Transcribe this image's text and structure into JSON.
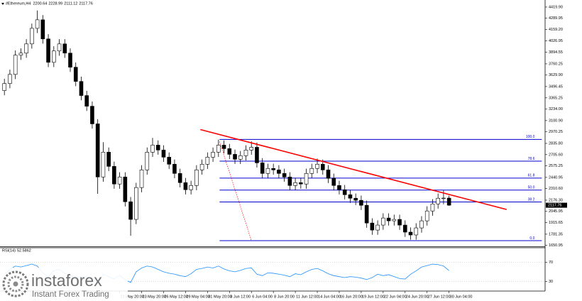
{
  "chart_data": {
    "type": "candlestick",
    "title": "#Ethereum,H4",
    "categories": [
      null,
      null,
      null,
      null,
      null,
      null,
      null,
      null,
      null,
      null,
      null,
      null,
      null,
      null,
      null,
      null,
      null,
      null,
      null,
      null,
      null,
      "21 May 20:00",
      null,
      null,
      null,
      "23 May 20:00",
      null,
      null,
      null,
      "26 May 12:00",
      null,
      null,
      null,
      "29 May 04:00",
      null,
      null,
      null,
      "31 May 20:00",
      null,
      null,
      null,
      "3 Jun 12:00",
      null,
      null,
      null,
      "6 Jun 04:00",
      null,
      null,
      null,
      "8 Jun 20:00",
      null,
      null,
      null,
      "11 Jun 12:00",
      null,
      null,
      null,
      "14 Jun 04:00",
      null,
      null,
      null,
      "16 Jun 20:00",
      null,
      null,
      null,
      "19 Jun 12:00",
      null,
      null,
      null,
      "22 Jun 04:00",
      null,
      null,
      null,
      "24 Jun 20:00",
      null,
      null,
      null,
      "27 Jun 12:00",
      null,
      null,
      null,
      "30 Jun 04:00"
    ],
    "open": [
      3450,
      3532,
      3638,
      3861,
      3885,
      3992,
      4173,
      4272,
      4050,
      3778,
      3910,
      3992,
      3885,
      3721,
      3556,
      3392,
      3268,
      3063,
      2446,
      2734,
      2569,
      2364,
      2446,
      2158,
      1953,
      2323,
      2528,
      2734,
      2816,
      2759,
      2676,
      2594,
      2487,
      2380,
      2298,
      2347,
      2528,
      2594,
      2676,
      2734,
      2816,
      2775,
      2709,
      2652,
      2693,
      2759,
      2791,
      2610,
      2487,
      2545,
      2528,
      2487,
      2446,
      2347,
      2380,
      2364,
      2487,
      2545,
      2594,
      2528,
      2430,
      2347,
      2298,
      2240,
      2199,
      2175,
      2117,
      1911,
      1829,
      1887,
      1969,
      1936,
      1953,
      1887,
      1805,
      1772,
      1854,
      1936,
      2051,
      2133,
      2199,
      2200.64
    ],
    "high": [
      3587,
      3693,
      3916,
      3940,
      4047,
      4228,
      4380,
      4327,
      4105,
      3965,
      4047,
      4047,
      3940,
      3776,
      3611,
      3447,
      3323,
      3118,
      2850,
      2789,
      2624,
      2501,
      2501,
      2213,
      2378,
      2583,
      2789,
      2900,
      2871,
      2814,
      2731,
      2649,
      2542,
      2435,
      2402,
      2583,
      2649,
      2731,
      2789,
      2880,
      2871,
      2830,
      2764,
      2748,
      2814,
      2860,
      2846,
      2665,
      2600,
      2600,
      2583,
      2542,
      2501,
      2435,
      2435,
      2542,
      2600,
      2660,
      2649,
      2583,
      2485,
      2402,
      2353,
      2295,
      2254,
      2230,
      2172,
      1966,
      1942,
      2024,
      2024,
      2008,
      2008,
      1942,
      1860,
      1909,
      1991,
      2106,
      2188,
      2254,
      2290,
      2228.99
    ],
    "low": [
      3395,
      3477,
      3583,
      3806,
      3830,
      3937,
      4118,
      3995,
      3723,
      3723,
      3855,
      3830,
      3666,
      3501,
      3337,
      3213,
      3008,
      2250,
      2391,
      2514,
      2309,
      2309,
      2103,
      1763,
      1898,
      2268,
      2473,
      2679,
      2704,
      2621,
      2539,
      2432,
      2325,
      2243,
      2243,
      2292,
      2473,
      2539,
      2621,
      2679,
      2720,
      2654,
      2597,
      2597,
      2638,
      2704,
      2555,
      2432,
      2432,
      2473,
      2432,
      2391,
      2292,
      2292,
      2309,
      2309,
      2432,
      2490,
      2473,
      2375,
      2292,
      2243,
      2185,
      2144,
      2120,
      2062,
      1856,
      1774,
      1774,
      1832,
      1881,
      1881,
      1832,
      1750,
      1717,
      1717,
      1799,
      1881,
      1996,
      2078,
      2128,
      2111.12
    ],
    "close": [
      3532,
      3638,
      3861,
      3885,
      3992,
      4173,
      4272,
      4050,
      3778,
      3910,
      3992,
      3885,
      3721,
      3556,
      3392,
      3268,
      3063,
      2446,
      2734,
      2569,
      2364,
      2446,
      2158,
      1953,
      2323,
      2528,
      2734,
      2816,
      2759,
      2676,
      2594,
      2487,
      2380,
      2298,
      2347,
      2528,
      2594,
      2676,
      2734,
      2816,
      2775,
      2709,
      2652,
      2693,
      2759,
      2791,
      2610,
      2487,
      2545,
      2528,
      2487,
      2446,
      2347,
      2380,
      2364,
      2487,
      2545,
      2594,
      2528,
      2430,
      2347,
      2298,
      2240,
      2199,
      2175,
      2117,
      1911,
      1829,
      1887,
      1969,
      1936,
      1953,
      1887,
      1805,
      1772,
      1854,
      1936,
      2051,
      2133,
      2199,
      2200.64,
      2117.76
    ],
    "up_color": "#ffffff",
    "down_color": "#000000",
    "xlim": [
      -0.8,
      98.5
    ],
    "ylim": [
      1640,
      4502
    ],
    "yticks": [
      {
        "value": 4419.9,
        "label": "4419.90"
      },
      4289.95,
      {
        "value": 4159.2,
        "label": "4159.20"
      },
      4026.95,
      3894.55,
      3760.25,
      {
        "value": 3629.9,
        "label": "3629.90"
      },
      3496.45,
      3365.25,
      {
        "value": 3234,
        "label": "3234.00"
      },
      {
        "value": 3100.9,
        "label": "3100.90"
      },
      2970.25,
      {
        "value": 2835.8,
        "label": "2835.80"
      },
      {
        "value": 2705.6,
        "label": "2705.60"
      },
      2575.25,
      2440.95,
      {
        "value": 2310.6,
        "label": "2310.60"
      },
      {
        "value": 2176.3,
        "label": "2176.30"
      },
      2045.95,
      1915.65,
      1781.35,
      1650.95
    ],
    "trendlines": [
      {
        "color": "#ff0000",
        "dotted": false,
        "x": [
          35.7,
          91.5
        ],
        "y": [
          2997,
          2068
        ]
      },
      {
        "color": "#ff0000",
        "dotted": true,
        "x": [
          39.2,
          45.0
        ],
        "y": [
          2857,
          1706
        ]
      }
    ],
    "fibonacci": {
      "color": "#0000cd",
      "x": [
        39.2,
        97.9
      ],
      "levels": [
        {
          "label": "100.0",
          "price": 2882
        },
        {
          "label": "78.6",
          "price": 2630
        },
        {
          "label": "61.8",
          "price": 2433
        },
        {
          "label": "50.0",
          "price": 2294
        },
        {
          "label": "38.2",
          "price": 2155
        },
        {
          "label": "0.0",
          "price": 1706
        }
      ]
    },
    "rsi": {
      "name": "RSI(14)",
      "color": "#1e90ff",
      "ylim": [
        10,
        100
      ],
      "yticks": [
        70,
        30
      ],
      "values": [
        45,
        55,
        62,
        60,
        63,
        66,
        62,
        48,
        40,
        52,
        55,
        47,
        42,
        40,
        38,
        40,
        38,
        25,
        45,
        40,
        35,
        43,
        33,
        28,
        50,
        58,
        62,
        60,
        55,
        50,
        47,
        45,
        42,
        40,
        46,
        55,
        57,
        60,
        58,
        62,
        56,
        52,
        50,
        53,
        57,
        58,
        45,
        42,
        48,
        47,
        45,
        43,
        40,
        46,
        44,
        50,
        55,
        57,
        52,
        46,
        42,
        40,
        38,
        40,
        39,
        37,
        34,
        38,
        45,
        42,
        44,
        40,
        36,
        35,
        45,
        52,
        60,
        63,
        66,
        65,
        62,
        52.5862
      ]
    }
  },
  "logo": {
    "name": "instaforex",
    "tagline": "Instant Forex Trading"
  }
}
